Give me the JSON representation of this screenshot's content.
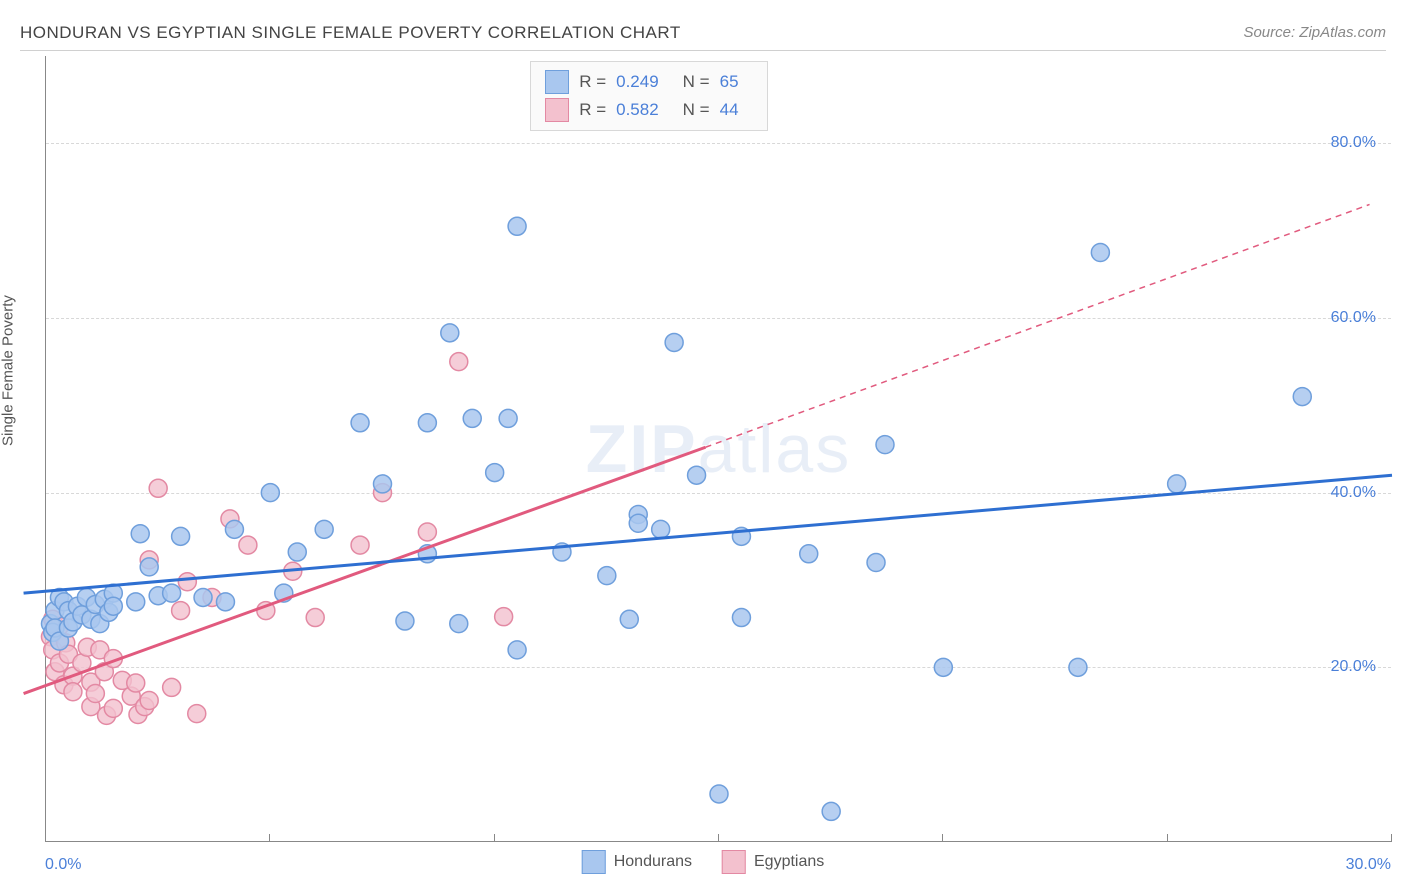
{
  "header": {
    "title": "HONDURAN VS EGYPTIAN SINGLE FEMALE POVERTY CORRELATION CHART",
    "source_label": "Source: ZipAtlas.com"
  },
  "axes": {
    "y_label": "Single Female Poverty",
    "xlim": [
      0,
      30
    ],
    "ylim": [
      0,
      90
    ],
    "y_ticks": [
      20,
      40,
      60,
      80
    ],
    "y_tick_labels": [
      "20.0%",
      "40.0%",
      "60.0%",
      "80.0%"
    ],
    "x_tick_positions": [
      0,
      5,
      10,
      15,
      20,
      25,
      30
    ],
    "x_label_min": "0.0%",
    "x_label_max": "30.0%"
  },
  "watermark": {
    "bold": "ZIP",
    "light": "atlas"
  },
  "series": {
    "hondurans": {
      "label": "Hondurans",
      "fill": "#a9c7ef",
      "stroke": "#6f9fdc",
      "line_color": "#2e6fd1",
      "line_width": 3,
      "marker_radius": 9,
      "marker_opacity": 0.85,
      "R": "0.249",
      "N": "65",
      "trend": {
        "x1": -0.5,
        "y1": 28.5,
        "x2": 30,
        "y2": 42
      },
      "points": [
        [
          0.1,
          25
        ],
        [
          0.15,
          24
        ],
        [
          0.2,
          26.5
        ],
        [
          0.2,
          24.5
        ],
        [
          0.3,
          28
        ],
        [
          0.3,
          23
        ],
        [
          0.4,
          27.5
        ],
        [
          0.5,
          26.5
        ],
        [
          0.5,
          24.5
        ],
        [
          0.6,
          25.2
        ],
        [
          0.7,
          27
        ],
        [
          0.8,
          26
        ],
        [
          0.9,
          28
        ],
        [
          1.0,
          25.5
        ],
        [
          1.1,
          27.2
        ],
        [
          1.2,
          25
        ],
        [
          1.3,
          27.8
        ],
        [
          1.4,
          26.3
        ],
        [
          1.5,
          28.5
        ],
        [
          1.5,
          27
        ],
        [
          2.0,
          27.5
        ],
        [
          2.1,
          35.3
        ],
        [
          2.3,
          31.5
        ],
        [
          2.5,
          28.2
        ],
        [
          2.8,
          28.5
        ],
        [
          3.0,
          35
        ],
        [
          3.5,
          28
        ],
        [
          4.0,
          27.5
        ],
        [
          4.2,
          35.8
        ],
        [
          5.0,
          40
        ],
        [
          5.3,
          28.5
        ],
        [
          5.6,
          33.2
        ],
        [
          6.2,
          35.8
        ],
        [
          7.0,
          48
        ],
        [
          7.5,
          41
        ],
        [
          8.0,
          25.3
        ],
        [
          8.5,
          48
        ],
        [
          8.5,
          33
        ],
        [
          9.0,
          58.3
        ],
        [
          9.2,
          25
        ],
        [
          9.5,
          48.5
        ],
        [
          10.0,
          42.3
        ],
        [
          10.3,
          48.5
        ],
        [
          10.5,
          22
        ],
        [
          10.5,
          70.5
        ],
        [
          11.5,
          33.2
        ],
        [
          12.5,
          30.5
        ],
        [
          13.0,
          25.5
        ],
        [
          13.2,
          37.5
        ],
        [
          13.2,
          36.5
        ],
        [
          13.7,
          35.8
        ],
        [
          14.0,
          57.2
        ],
        [
          14.5,
          42
        ],
        [
          15.0,
          5.5
        ],
        [
          15.5,
          25.7
        ],
        [
          15.5,
          35
        ],
        [
          17.0,
          33
        ],
        [
          17.5,
          3.5
        ],
        [
          18.7,
          45.5
        ],
        [
          18.5,
          32
        ],
        [
          20.0,
          20
        ],
        [
          23.5,
          67.5
        ],
        [
          23.0,
          20
        ],
        [
          25.2,
          41
        ],
        [
          28.0,
          51
        ]
      ]
    },
    "egyptians": {
      "label": "Egyptians",
      "fill": "#f3c1ce",
      "stroke": "#e389a3",
      "line_color": "#e15a7e",
      "line_width": 3,
      "marker_radius": 9,
      "marker_opacity": 0.8,
      "R": "0.582",
      "N": "44",
      "trend_solid": {
        "x1": -0.5,
        "y1": 17,
        "x2": 14.7,
        "y2": 45.2
      },
      "trend_dashed": {
        "x1": 14.7,
        "y1": 45.2,
        "x2": 29.5,
        "y2": 73
      },
      "dash_pattern": "6,5",
      "points": [
        [
          0.1,
          23.5
        ],
        [
          0.15,
          22
        ],
        [
          0.15,
          25.5
        ],
        [
          0.2,
          19.5
        ],
        [
          0.3,
          20.5
        ],
        [
          0.3,
          24.7
        ],
        [
          0.4,
          18
        ],
        [
          0.44,
          22.8
        ],
        [
          0.5,
          21.5
        ],
        [
          0.6,
          19
        ],
        [
          0.6,
          17.2
        ],
        [
          0.8,
          20.5
        ],
        [
          0.92,
          22.3
        ],
        [
          1.0,
          18.3
        ],
        [
          1.0,
          15.5
        ],
        [
          1.1,
          17
        ],
        [
          1.2,
          22
        ],
        [
          1.3,
          19.5
        ],
        [
          1.35,
          14.5
        ],
        [
          1.5,
          15.3
        ],
        [
          1.5,
          21
        ],
        [
          1.7,
          18.5
        ],
        [
          1.9,
          16.7
        ],
        [
          2.0,
          18.2
        ],
        [
          2.05,
          14.6
        ],
        [
          2.2,
          15.5
        ],
        [
          2.3,
          16.2
        ],
        [
          2.3,
          32.3
        ],
        [
          2.5,
          40.5
        ],
        [
          2.8,
          17.7
        ],
        [
          3.0,
          26.5
        ],
        [
          3.15,
          29.8
        ],
        [
          3.36,
          14.7
        ],
        [
          3.7,
          28
        ],
        [
          4.1,
          37
        ],
        [
          4.5,
          34
        ],
        [
          4.9,
          26.5
        ],
        [
          5.5,
          31
        ],
        [
          6.0,
          25.7
        ],
        [
          7.0,
          34
        ],
        [
          7.5,
          40
        ],
        [
          8.5,
          35.5
        ],
        [
          9.2,
          55
        ],
        [
          10.2,
          25.8
        ]
      ]
    }
  },
  "stats_box": {
    "R_label": "R =",
    "N_label": "N ="
  },
  "colors": {
    "grid": "#d8d8d8",
    "axis": "#888888",
    "tick_label": "#4a7fd8",
    "text": "#555555",
    "background": "#ffffff"
  }
}
